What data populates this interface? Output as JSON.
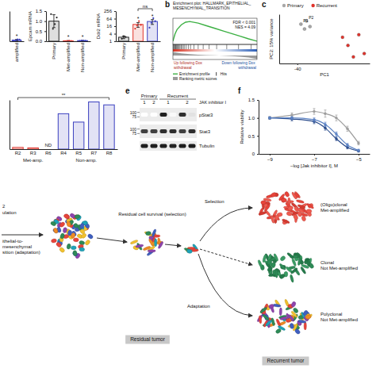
{
  "panel_letters": [
    "b",
    "c",
    "e",
    "f"
  ],
  "chart_data": [
    {
      "type": "bar",
      "categories": [
        "amplified"
      ],
      "values": [
        0.06
      ],
      "errors": [
        0.03
      ],
      "points": [
        [
          0.03,
          0.05,
          0.09,
          0.08
        ]
      ],
      "color": "#3a3fbf",
      "ylim": [
        0,
        1.5
      ],
      "tick_labels": "x",
      "significance": [
        "*"
      ]
    },
    {
      "type": "bar",
      "ylabel": "Epcam mRNA",
      "categories": [
        "Primary",
        "Met-amplified",
        "Non-amplified"
      ],
      "values": [
        1.0,
        0.02,
        0.03
      ],
      "errors": [
        0.32,
        0.01,
        0.01
      ],
      "points": [
        [
          1.35,
          0.62,
          0.85,
          1.18
        ],
        [
          0.01,
          0.02,
          0.03,
          0.02
        ],
        [
          0.02,
          0.04,
          0.03,
          0.03
        ]
      ],
      "colors": [
        "#222222",
        "#e0332b",
        "#3a3fbf"
      ],
      "ylim": [
        0,
        1.5
      ],
      "yticks": [
        {
          "value": 0,
          "label": "0.0"
        },
        0.5,
        {
          "value": 1,
          "label": "1.0"
        },
        1.5
      ],
      "significance": [
        null,
        "*",
        "*"
      ]
    },
    {
      "type": "bar",
      "ylabel": "Ddr2 mRNA",
      "log": "y",
      "categories": [
        "Primary",
        "Met-amplified",
        "Non-amplified"
      ],
      "values": [
        2.1,
        22,
        38
      ],
      "errors": [
        0.5,
        9,
        16
      ],
      "points": [
        [
          1.6,
          2.5,
          2.2
        ],
        [
          10,
          18,
          40,
          20
        ],
        [
          12,
          30,
          70,
          40
        ]
      ],
      "colors": [
        "#222222",
        "#e0332b",
        "#3a3fbf"
      ],
      "ylim": [
        1,
        256
      ],
      "yticks": [
        1,
        4,
        16,
        64,
        256
      ],
      "significance": [
        null,
        "*",
        "*"
      ],
      "brackets": [
        {
          "from": 1,
          "to": 2,
          "label": "ns"
        }
      ]
    },
    {
      "type": "line",
      "title": "Enrichment plot: HALLMARK_EPITHELIAL_MESENCHYMAL_TRANSITION",
      "x": [
        0,
        250,
        500,
        1000,
        1500,
        2000,
        3000,
        4000,
        5000,
        6000,
        7000,
        8000,
        9000,
        10000
      ],
      "series": [
        {
          "name": "Enrichment profile",
          "color": "#3cb043",
          "values": [
            0,
            0.22,
            0.36,
            0.5,
            0.58,
            0.6,
            0.55,
            0.47,
            0.39,
            0.31,
            0.23,
            0.15,
            0.07,
            0
          ]
        }
      ],
      "hits": {
        "name": "Hits",
        "x": [
          50,
          120,
          200,
          260,
          330,
          400,
          480,
          560,
          650,
          740,
          850,
          980,
          1100,
          1250,
          1400,
          1600,
          1850,
          2100,
          2500,
          3000,
          3600,
          4300,
          5200,
          6400,
          7800,
          9300
        ]
      },
      "ranking": {
        "name": "Ranking metric scores",
        "x": [
          0,
          1000,
          2000,
          3000,
          4000,
          5000,
          6000,
          7000,
          8000,
          9000,
          10000
        ],
        "values": [
          1.8,
          1.1,
          0.7,
          0.45,
          0.25,
          0.08,
          -0.1,
          -0.3,
          -0.55,
          -0.95,
          -1.7
        ],
        "ylim": [
          -2,
          2
        ]
      },
      "xlim": [
        0,
        10000
      ],
      "ylim": [
        -0.1,
        0.7
      ],
      "tick_labels": false,
      "annotations": [
        "FDR < 0.001",
        "NES = 4.09"
      ],
      "direction_labels": [
        "Up following Dox withdrawal",
        "Down following Dox withdrawal"
      ],
      "legend": "bottom"
    },
    {
      "type": "scatter",
      "xlabel": "PC1",
      "ylabel": "PC2: 15% variance",
      "marker": "circle",
      "series": [
        {
          "name": "Primary",
          "color": "#a8a8a8",
          "x": [
            -38,
            -35,
            -33,
            -36
          ],
          "values": [
            18,
            22,
            15,
            12
          ],
          "point_labels": [
            "P1",
            "P2",
            null,
            null
          ]
        },
        {
          "name": "Recurrent",
          "color": "#e0332b",
          "x": [
            -12,
            -6,
            -3,
            -9,
            -15
          ],
          "values": [
            -8,
            5,
            -18,
            -22,
            2
          ]
        }
      ],
      "xlim": [
        -50,
        0
      ],
      "xticks": [
        -40
      ],
      "ylim": [
        -30,
        30
      ],
      "tick_labels": "x",
      "legend": "top"
    },
    {
      "type": "bar",
      "categories": [
        "R2",
        "R3",
        "R6",
        "R4",
        "R5",
        "R7",
        "R8"
      ],
      "series": [
        {
          "name": "Met-amp.",
          "color": "#e0332b",
          "values": [
            0.35,
            0.25,
            null,
            null,
            null,
            null,
            null
          ],
          "value_labels": [
            null,
            null,
            "ND",
            null,
            null,
            null,
            null
          ]
        },
        {
          "name": "Non-amp.",
          "color": "#3a3fbf",
          "values": [
            null,
            null,
            null,
            7.2,
            5.5,
            9.6,
            9.0
          ]
        }
      ],
      "ylim": [
        0,
        10
      ],
      "tick_labels": "x",
      "brackets": [
        {
          "from": 0,
          "to": 6,
          "label": "**"
        }
      ]
    },
    {
      "type": "line",
      "marker": "circle",
      "ylabel": "Relative viability",
      "xlabel": "−log [Jak inhibitor I], M",
      "x": [
        -9,
        -8,
        -7,
        -6.5,
        -6,
        -5.5,
        -5
      ],
      "series": [
        {
          "color": "#9e9e9e",
          "values": [
            1.0,
            1.08,
            1.18,
            1.12,
            1.0,
            0.7,
            0.3
          ],
          "errors": [
            0.04,
            0.06,
            0.08,
            0.1,
            0.08,
            0.07,
            0.05
          ]
        },
        {
          "color": "#2b4c8c",
          "values": [
            1.0,
            0.97,
            0.9,
            0.72,
            0.42,
            0.18,
            0.08
          ],
          "errors": [
            0.03,
            0.05,
            0.06,
            0.06,
            0.05,
            0.04,
            0.03
          ]
        },
        {
          "color": "#5b82c4",
          "values": [
            1.0,
            1.0,
            0.95,
            0.82,
            0.55,
            0.25,
            0.1
          ],
          "errors": [
            0.03,
            0.04,
            0.05,
            0.06,
            0.06,
            0.04,
            0.03
          ]
        }
      ],
      "xlim": [
        -9.5,
        -4.5
      ],
      "xticks": [
        {
          "value": -9,
          "label": "−9"
        },
        {
          "value": -7,
          "label": "−7"
        },
        {
          "value": -5,
          "label": "−5"
        }
      ],
      "ylim": [
        0,
        1.5
      ],
      "yticks": [
        0,
        0.5,
        {
          "value": 1,
          "label": "1.0"
        },
        1.5
      ]
    }
  ],
  "blot": {
    "groups": [
      {
        "label": "Primary",
        "samples": [
          {
            "label": "1",
            "lanes": 1
          },
          {
            "label": "2",
            "lanes": 1
          }
        ]
      },
      {
        "label": "Recurrent",
        "samples": [
          {
            "label": "1",
            "lanes": 2
          },
          {
            "label": "2",
            "lanes": 2
          }
        ]
      }
    ],
    "treatment": "JAK inhibitor I",
    "rows": [
      {
        "label": "pStat3",
        "markers": [
          100,
          75
        ],
        "bands": [
          0,
          0,
          0.9,
          0.05,
          0.85,
          0.2
        ]
      },
      {
        "label": "Stat3",
        "markers": [
          100,
          75
        ],
        "bands": [
          0.8,
          0.8,
          0.85,
          0.85,
          0.8,
          0.85
        ]
      },
      {
        "label": "Tubulin",
        "markers": [],
        "bands": [
          0.9,
          0.9,
          0.9,
          0.88,
          0.9,
          0.9
        ]
      }
    ]
  },
  "diagram": {
    "population": [
      "2",
      "ulation"
    ],
    "transition": [
      "ithelial-to-mesenchymal",
      "sition (adaptation)"
    ],
    "residual_step": "Residual cell survival (selection)",
    "selection": "Selection",
    "adaptation": "Adaptation",
    "outcomes": [
      [
        "(Oligo)clonal",
        "Met-amplified"
      ],
      [
        "Clonal",
        "Not Met-amplified"
      ],
      [
        "Polyclonal",
        "Not Met-amplified"
      ]
    ],
    "stages": [
      "Residual tumor",
      "Recurrent tumor"
    ]
  }
}
